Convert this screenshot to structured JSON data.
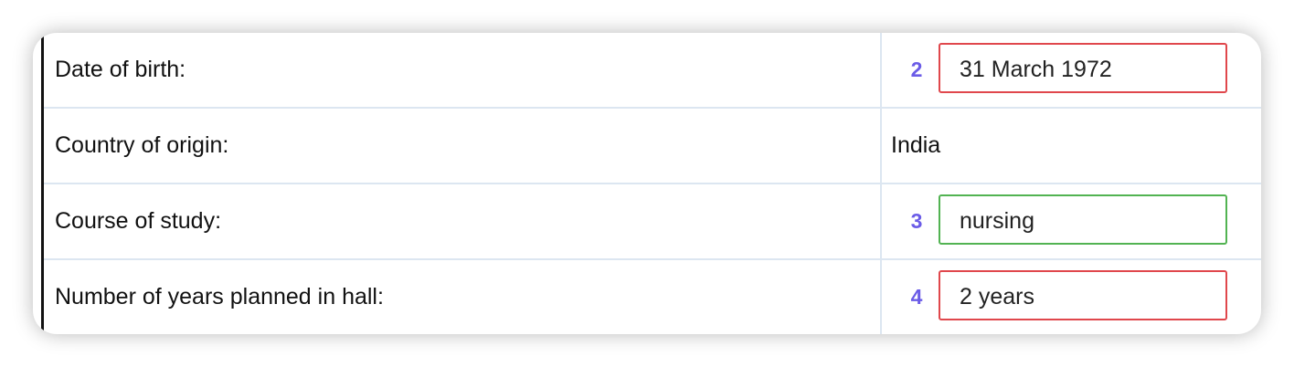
{
  "form": {
    "rows": [
      {
        "label": "Date of birth:",
        "question_number": "2",
        "answer": "31 March 1972",
        "status": "incorrect"
      },
      {
        "label": "Country of origin:",
        "value": "India"
      },
      {
        "label": "Course of study:",
        "question_number": "3",
        "answer": "nursing",
        "status": "correct"
      },
      {
        "label": "Number of years planned in hall:",
        "question_number": "4",
        "answer": "2 years",
        "status": "incorrect"
      }
    ]
  },
  "colors": {
    "question_number": "#6b5ce7",
    "incorrect_border": "#e0474c",
    "correct_border": "#52b352",
    "grid_line": "#dce6f1"
  }
}
